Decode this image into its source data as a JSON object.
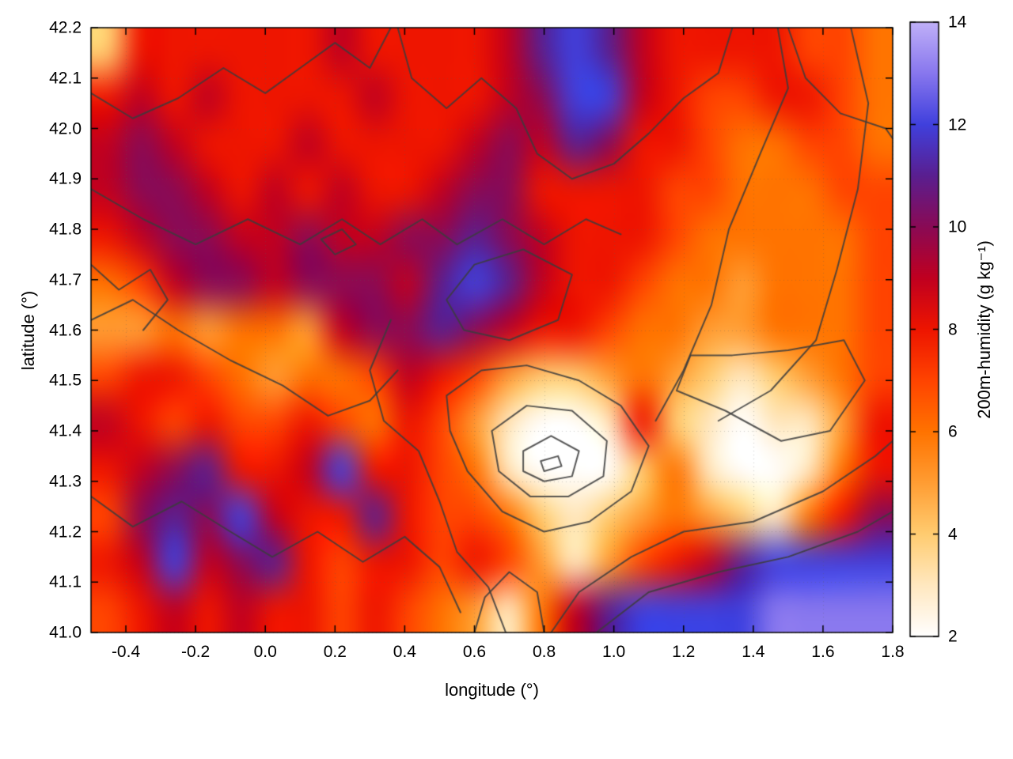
{
  "figure": {
    "background": "#ffffff",
    "border_color": "#000000",
    "text_color": "#000000"
  },
  "chart_data": {
    "type": "heatmap",
    "title": "",
    "xlabel": "longitude (°)",
    "ylabel": "latitude (°)",
    "colorbar_label": "200m-humidity (g kg⁻¹)",
    "x_range": [
      -0.5,
      1.8
    ],
    "y_range": [
      41.0,
      42.2
    ],
    "color_range": [
      2,
      14
    ],
    "grid_on": true,
    "x_ticks": [
      -0.4,
      -0.2,
      0.0,
      0.2,
      0.4,
      0.6,
      0.8,
      1.0,
      1.2,
      1.4,
      1.6,
      1.8
    ],
    "x_tick_labels": [
      "-0.4",
      "-0.2",
      "0.0",
      "0.2",
      "0.4",
      "0.6",
      "0.8",
      "1.0",
      "1.2",
      "1.4",
      "1.6",
      "1.8"
    ],
    "y_ticks": [
      41.0,
      41.1,
      41.2,
      41.3,
      41.4,
      41.5,
      41.6,
      41.7,
      41.8,
      41.9,
      42.0,
      42.1,
      42.2
    ],
    "y_tick_labels": [
      "41.0",
      "41.1",
      "41.2",
      "41.3",
      "41.4",
      "41.5",
      "41.6",
      "41.7",
      "41.8",
      "41.9",
      "42.0",
      "42.1",
      "42.2"
    ],
    "colorbar_ticks": [
      2,
      4,
      6,
      8,
      10,
      12,
      14
    ],
    "colorbar_tick_labels": [
      "2",
      "4",
      "6",
      "8",
      "10",
      "12",
      "14"
    ],
    "palette": [
      {
        "value": 2,
        "color": "#ffffff"
      },
      {
        "value": 3,
        "color": "#ffe8c0"
      },
      {
        "value": 4,
        "color": "#ffcc70"
      },
      {
        "value": 5,
        "color": "#ff9d33"
      },
      {
        "value": 6,
        "color": "#ff7300"
      },
      {
        "value": 7,
        "color": "#ff4400"
      },
      {
        "value": 8,
        "color": "#ee1500"
      },
      {
        "value": 9,
        "color": "#c00020"
      },
      {
        "value": 10,
        "color": "#8a0a55"
      },
      {
        "value": 11,
        "color": "#5a1f90"
      },
      {
        "value": 12,
        "color": "#4040dd"
      },
      {
        "value": 13,
        "color": "#8877ee"
      },
      {
        "value": 14,
        "color": "#c0b0f8"
      }
    ],
    "grid": {
      "lon_start": -0.5,
      "lon_step": 0.1,
      "cols": 24,
      "lat_start": 42.2,
      "lat_step": -0.1,
      "rows": 13
    },
    "values": [
      [
        4,
        8,
        8,
        8,
        8,
        8,
        8,
        9,
        8,
        8,
        8,
        8,
        9,
        11,
        12,
        11,
        9,
        8,
        8,
        8,
        8,
        7,
        7,
        6
      ],
      [
        8,
        9,
        8,
        9,
        8,
        8,
        8,
        8,
        9,
        8,
        8,
        8,
        9,
        10,
        12,
        12,
        9,
        8,
        7,
        7,
        8,
        8,
        7,
        6
      ],
      [
        9,
        10,
        9,
        8,
        8,
        8,
        9,
        8,
        8,
        8,
        8,
        9,
        10,
        9,
        11,
        10,
        8,
        8,
        7,
        6,
        6,
        7,
        7,
        6
      ],
      [
        9,
        10,
        10,
        9,
        8,
        9,
        8,
        9,
        8,
        8,
        9,
        10,
        10,
        8,
        8,
        8,
        8,
        7,
        7,
        6,
        6,
        6,
        7,
        7
      ],
      [
        8,
        9,
        10,
        10,
        9,
        9,
        10,
        9,
        9,
        10,
        10,
        11,
        10,
        9,
        8,
        8,
        8,
        7,
        6,
        6,
        6,
        6,
        6,
        7
      ],
      [
        6,
        7,
        9,
        10,
        10,
        9,
        10,
        10,
        10,
        9,
        11,
        12,
        11,
        9,
        8,
        8,
        7,
        6,
        6,
        5,
        6,
        6,
        6,
        7
      ],
      [
        5,
        5,
        6,
        5,
        6,
        6,
        5,
        9,
        10,
        10,
        11,
        10,
        9,
        8,
        8,
        7,
        6,
        6,
        5,
        5,
        6,
        6,
        6,
        7
      ],
      [
        7,
        8,
        8,
        7,
        6,
        5,
        6,
        6,
        7,
        9,
        8,
        7,
        5,
        4,
        4,
        5,
        6,
        5,
        4,
        3,
        4,
        5,
        6,
        7
      ],
      [
        9,
        8,
        7,
        8,
        7,
        7,
        8,
        7,
        6,
        8,
        7,
        5,
        3,
        2,
        2,
        3,
        8,
        4,
        3,
        2,
        3,
        3,
        5,
        8
      ],
      [
        8,
        9,
        10,
        11,
        8,
        8,
        9,
        12,
        8,
        8,
        7,
        6,
        3,
        2,
        2,
        2,
        4,
        6,
        3,
        2,
        2,
        3,
        6,
        8
      ],
      [
        7,
        10,
        11,
        10,
        12,
        9,
        8,
        8,
        11,
        8,
        7,
        7,
        6,
        4,
        3,
        4,
        5,
        6,
        5,
        4,
        3,
        6,
        8,
        10
      ],
      [
        8,
        9,
        12,
        9,
        10,
        11,
        8,
        7,
        8,
        8,
        7,
        8,
        7,
        5,
        3,
        5,
        7,
        8,
        9,
        11,
        12,
        12,
        12,
        12
      ],
      [
        7,
        8,
        9,
        8,
        9,
        8,
        8,
        7,
        8,
        7,
        6,
        5,
        3,
        6,
        9,
        11,
        12,
        12,
        12,
        12,
        13,
        13,
        13,
        13
      ]
    ],
    "contours": {
      "color": "#3c3c3c",
      "line_width": 2,
      "paths": [
        {
          "closed": true,
          "points": [
            [
              0.52,
              41.47
            ],
            [
              0.62,
              41.52
            ],
            [
              0.75,
              41.53
            ],
            [
              0.9,
              41.5
            ],
            [
              1.02,
              41.45
            ],
            [
              1.1,
              41.37
            ],
            [
              1.05,
              41.28
            ],
            [
              0.93,
              41.22
            ],
            [
              0.8,
              41.2
            ],
            [
              0.68,
              41.24
            ],
            [
              0.58,
              41.32
            ],
            [
              0.53,
              41.4
            ]
          ]
        },
        {
          "closed": true,
          "points": [
            [
              0.65,
              41.4
            ],
            [
              0.75,
              41.45
            ],
            [
              0.88,
              41.44
            ],
            [
              0.98,
              41.38
            ],
            [
              0.97,
              41.31
            ],
            [
              0.87,
              41.27
            ],
            [
              0.76,
              41.27
            ],
            [
              0.67,
              41.32
            ]
          ]
        },
        {
          "closed": true,
          "points": [
            [
              0.74,
              41.36
            ],
            [
              0.82,
              41.39
            ],
            [
              0.9,
              41.36
            ],
            [
              0.88,
              41.31
            ],
            [
              0.8,
              41.3
            ],
            [
              0.74,
              41.32
            ]
          ]
        },
        {
          "closed": true,
          "points": [
            [
              0.79,
              41.34
            ],
            [
              0.84,
              41.35
            ],
            [
              0.85,
              41.33
            ],
            [
              0.8,
              41.32
            ]
          ]
        },
        {
          "closed": false,
          "points": [
            [
              0.82,
              41.0
            ],
            [
              0.9,
              41.08
            ],
            [
              1.05,
              41.15
            ],
            [
              1.2,
              41.2
            ],
            [
              1.4,
              41.22
            ],
            [
              1.6,
              41.28
            ],
            [
              1.75,
              41.35
            ],
            [
              1.8,
              41.38
            ]
          ]
        },
        {
          "closed": false,
          "points": [
            [
              0.95,
              41.0
            ],
            [
              1.1,
              41.08
            ],
            [
              1.3,
              41.12
            ],
            [
              1.5,
              41.15
            ],
            [
              1.7,
              41.2
            ],
            [
              1.8,
              41.24
            ]
          ]
        },
        {
          "closed": false,
          "points": [
            [
              1.12,
              41.42
            ],
            [
              1.2,
              41.52
            ],
            [
              1.28,
              41.65
            ],
            [
              1.33,
              41.8
            ],
            [
              1.42,
              41.95
            ],
            [
              1.5,
              42.08
            ],
            [
              1.47,
              42.2
            ]
          ]
        },
        {
          "closed": false,
          "points": [
            [
              1.3,
              41.42
            ],
            [
              1.45,
              41.48
            ],
            [
              1.58,
              41.58
            ],
            [
              1.64,
              41.72
            ],
            [
              1.7,
              41.88
            ],
            [
              1.73,
              42.05
            ],
            [
              1.68,
              42.2
            ]
          ]
        },
        {
          "closed": true,
          "points": [
            [
              1.18,
              41.48
            ],
            [
              1.32,
              41.44
            ],
            [
              1.48,
              41.38
            ],
            [
              1.62,
              41.4
            ],
            [
              1.72,
              41.5
            ],
            [
              1.66,
              41.58
            ],
            [
              1.5,
              41.56
            ],
            [
              1.34,
              41.55
            ],
            [
              1.22,
              41.55
            ]
          ]
        },
        {
          "closed": false,
          "points": [
            [
              -0.5,
              42.07
            ],
            [
              -0.38,
              42.02
            ],
            [
              -0.25,
              42.06
            ],
            [
              -0.12,
              42.12
            ],
            [
              0.0,
              42.07
            ],
            [
              0.1,
              42.12
            ],
            [
              0.2,
              42.17
            ],
            [
              0.3,
              42.12
            ],
            [
              0.36,
              42.2
            ]
          ]
        },
        {
          "closed": false,
          "points": [
            [
              -0.5,
              41.88
            ],
            [
              -0.35,
              41.82
            ],
            [
              -0.2,
              41.77
            ],
            [
              -0.05,
              41.82
            ],
            [
              0.1,
              41.77
            ],
            [
              0.22,
              41.82
            ],
            [
              0.33,
              41.77
            ],
            [
              0.45,
              41.82
            ],
            [
              0.55,
              41.77
            ],
            [
              0.68,
              41.82
            ],
            [
              0.8,
              41.77
            ],
            [
              0.92,
              41.82
            ],
            [
              1.02,
              41.79
            ]
          ]
        },
        {
          "closed": false,
          "points": [
            [
              -0.5,
              41.62
            ],
            [
              -0.38,
              41.66
            ],
            [
              -0.25,
              41.6
            ],
            [
              -0.1,
              41.54
            ],
            [
              0.05,
              41.49
            ],
            [
              0.18,
              41.43
            ],
            [
              0.3,
              41.46
            ],
            [
              0.38,
              41.52
            ]
          ]
        },
        {
          "closed": false,
          "points": [
            [
              -0.5,
              41.27
            ],
            [
              -0.38,
              41.21
            ],
            [
              -0.24,
              41.26
            ],
            [
              -0.1,
              41.2
            ],
            [
              0.02,
              41.15
            ],
            [
              0.15,
              41.2
            ],
            [
              0.28,
              41.14
            ],
            [
              0.4,
              41.19
            ],
            [
              0.5,
              41.13
            ],
            [
              0.56,
              41.04
            ]
          ]
        },
        {
          "closed": false,
          "points": [
            [
              0.36,
              41.62
            ],
            [
              0.3,
              41.52
            ],
            [
              0.34,
              41.42
            ],
            [
              0.44,
              41.36
            ],
            [
              0.5,
              41.26
            ],
            [
              0.55,
              41.16
            ],
            [
              0.64,
              41.09
            ],
            [
              0.69,
              41.0
            ]
          ]
        },
        {
          "closed": true,
          "points": [
            [
              0.52,
              41.66
            ],
            [
              0.6,
              41.73
            ],
            [
              0.74,
              41.76
            ],
            [
              0.88,
              41.71
            ],
            [
              0.84,
              41.62
            ],
            [
              0.7,
              41.58
            ],
            [
              0.57,
              41.6
            ]
          ]
        },
        {
          "closed": false,
          "points": [
            [
              0.38,
              42.2
            ],
            [
              0.42,
              42.1
            ],
            [
              0.52,
              42.04
            ],
            [
              0.62,
              42.1
            ],
            [
              0.72,
              42.04
            ],
            [
              0.78,
              41.95
            ],
            [
              0.88,
              41.9
            ],
            [
              1.0,
              41.93
            ],
            [
              1.1,
              41.99
            ],
            [
              1.2,
              42.06
            ],
            [
              1.3,
              42.11
            ],
            [
              1.34,
              42.2
            ]
          ]
        },
        {
          "closed": true,
          "points": [
            [
              0.16,
              41.78
            ],
            [
              0.22,
              41.8
            ],
            [
              0.26,
              41.77
            ],
            [
              0.2,
              41.75
            ]
          ]
        },
        {
          "closed": false,
          "points": [
            [
              0.6,
              41.0
            ],
            [
              0.63,
              41.07
            ],
            [
              0.7,
              41.12
            ],
            [
              0.78,
              41.08
            ],
            [
              0.8,
              41.0
            ]
          ]
        },
        {
          "closed": false,
          "points": [
            [
              1.5,
              42.2
            ],
            [
              1.55,
              42.1
            ],
            [
              1.65,
              42.03
            ],
            [
              1.78,
              42.0
            ],
            [
              1.8,
              41.98
            ]
          ]
        },
        {
          "closed": false,
          "points": [
            [
              -0.5,
              41.73
            ],
            [
              -0.42,
              41.68
            ],
            [
              -0.33,
              41.72
            ],
            [
              -0.28,
              41.66
            ],
            [
              -0.35,
              41.6
            ]
          ]
        }
      ]
    }
  }
}
